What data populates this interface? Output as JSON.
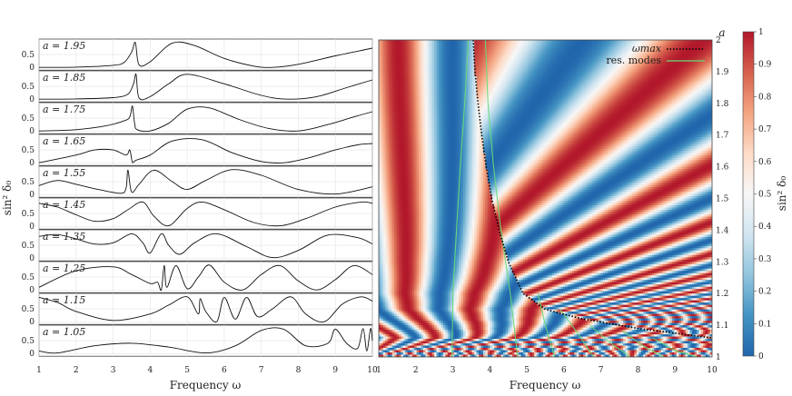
{
  "chart_data": [
    {
      "type": "line",
      "panel": "left",
      "xlabel": "Frequency ω",
      "ylabel": "sin² δ₀",
      "xlim": [
        1,
        10
      ],
      "ylim": [
        0,
        1
      ],
      "xticks": [
        1,
        2,
        3,
        4,
        5,
        6,
        7,
        8,
        9,
        10
      ],
      "yticks": [
        0,
        0.5
      ],
      "grid": true,
      "series": [
        {
          "name": "a = 1.95",
          "x": [
            1.0,
            2.0,
            3.0,
            3.3,
            3.5,
            3.6,
            3.7,
            4.0,
            4.6,
            5.2,
            6.0,
            6.8,
            7.3,
            8.0,
            9.0,
            10.0
          ],
          "values": [
            0.0,
            0.01,
            0.08,
            0.2,
            0.6,
            0.97,
            0.1,
            0.22,
            0.95,
            0.85,
            0.35,
            0.05,
            0.0,
            0.12,
            0.45,
            0.75
          ]
        },
        {
          "name": "a = 1.85",
          "x": [
            1.0,
            2.0,
            3.0,
            3.4,
            3.55,
            3.62,
            3.7,
            4.0,
            4.5,
            5.0,
            6.0,
            7.0,
            7.7,
            8.5,
            9.3,
            10.0
          ],
          "values": [
            0.0,
            0.01,
            0.06,
            0.2,
            0.6,
            0.97,
            0.05,
            0.1,
            0.6,
            0.97,
            0.6,
            0.15,
            0.0,
            0.1,
            0.45,
            0.75
          ]
        },
        {
          "name": "a = 1.75",
          "x": [
            1.0,
            2.0,
            2.8,
            3.3,
            3.45,
            3.52,
            3.58,
            3.65,
            4.0,
            4.5,
            5.0,
            5.6,
            6.4,
            7.2,
            8.0,
            8.8,
            9.5,
            10.0
          ],
          "values": [
            0.0,
            0.05,
            0.2,
            0.4,
            0.55,
            0.97,
            0.3,
            0.05,
            0.0,
            0.3,
            0.85,
            0.9,
            0.45,
            0.1,
            0.0,
            0.25,
            0.55,
            0.75
          ]
        },
        {
          "name": "a = 1.65",
          "x": [
            1.0,
            2.0,
            2.5,
            3.0,
            3.35,
            3.45,
            3.52,
            3.62,
            4.0,
            4.6,
            5.4,
            6.2,
            7.0,
            7.6,
            8.3,
            9.0,
            9.6,
            10.0
          ],
          "values": [
            0.0,
            0.3,
            0.5,
            0.5,
            0.3,
            0.5,
            0.02,
            0.1,
            0.3,
            0.85,
            0.9,
            0.4,
            0.05,
            0.0,
            0.2,
            0.5,
            0.7,
            0.75
          ]
        },
        {
          "name": "a = 1.55",
          "x": [
            1.0,
            1.5,
            2.0,
            2.6,
            3.2,
            3.35,
            3.4,
            3.5,
            3.7,
            4.1,
            4.6,
            5.0,
            5.5,
            6.2,
            7.0,
            8.0,
            9.0,
            10.0
          ],
          "values": [
            0.35,
            0.55,
            0.4,
            0.2,
            0.05,
            0.25,
            0.95,
            0.1,
            0.4,
            0.95,
            0.5,
            0.2,
            0.55,
            0.97,
            0.75,
            0.2,
            0.02,
            0.3
          ]
        },
        {
          "name": "a = 1.45",
          "x": [
            1.0,
            1.5,
            2.0,
            2.5,
            3.0,
            3.4,
            3.8,
            4.1,
            4.5,
            5.0,
            5.4,
            6.0,
            6.8,
            7.5,
            8.2,
            9.0,
            9.7,
            10.0
          ],
          "values": [
            0.9,
            0.75,
            0.45,
            0.2,
            0.3,
            0.65,
            0.95,
            0.4,
            0.02,
            0.7,
            0.95,
            0.65,
            0.15,
            0.02,
            0.3,
            0.75,
            0.95,
            0.9
          ]
        },
        {
          "name": "a = 1.35",
          "x": [
            1.0,
            1.5,
            2.0,
            2.5,
            3.0,
            3.5,
            3.8,
            4.0,
            4.3,
            4.5,
            4.8,
            5.2,
            5.8,
            6.6,
            7.3,
            8.0,
            8.8,
            9.6,
            10.0
          ],
          "values": [
            0.85,
            0.92,
            0.75,
            0.55,
            0.6,
            0.95,
            0.6,
            0.2,
            0.95,
            0.5,
            0.15,
            0.6,
            0.95,
            0.45,
            0.02,
            0.3,
            0.9,
            0.8,
            0.55
          ]
        },
        {
          "name": "a = 1.25",
          "x": [
            1.0,
            2.0,
            3.0,
            3.5,
            4.0,
            4.2,
            4.3,
            4.38,
            4.45,
            4.7,
            5.0,
            5.3,
            5.6,
            6.0,
            6.5,
            7.0,
            7.5,
            8.0,
            8.5,
            9.0,
            9.5,
            10.0
          ],
          "values": [
            0.1,
            0.75,
            0.9,
            0.6,
            0.25,
            0.3,
            0.0,
            0.95,
            0.1,
            0.95,
            0.05,
            0.5,
            0.97,
            0.3,
            0.0,
            0.6,
            0.95,
            0.35,
            0.0,
            0.4,
            0.95,
            0.6
          ]
        },
        {
          "name": "a = 1.15",
          "x": [
            1.0,
            1.5,
            2.0,
            3.0,
            4.0,
            4.5,
            5.0,
            5.3,
            5.35,
            5.5,
            5.8,
            6.0,
            6.3,
            6.6,
            6.9,
            7.3,
            7.8,
            8.2,
            8.7,
            9.2,
            9.7,
            10.0
          ],
          "values": [
            0.95,
            0.75,
            0.4,
            0.05,
            0.3,
            0.65,
            0.97,
            0.3,
            0.9,
            0.4,
            0.0,
            0.95,
            0.1,
            0.95,
            0.2,
            0.5,
            0.97,
            0.3,
            0.0,
            0.7,
            0.97,
            0.8
          ]
        },
        {
          "name": "a = 1.05",
          "x": [
            1.0,
            1.5,
            2.5,
            3.5,
            4.5,
            5.5,
            6.3,
            7.0,
            7.6,
            8.2,
            8.8,
            9.0,
            9.3,
            9.6,
            9.75,
            9.85,
            9.95,
            10.0
          ],
          "values": [
            0.1,
            0.02,
            0.3,
            0.4,
            0.25,
            0.02,
            0.3,
            0.9,
            0.95,
            0.3,
            0.4,
            0.95,
            0.4,
            0.2,
            0.97,
            0.1,
            0.97,
            0.5
          ]
        }
      ]
    },
    {
      "type": "heatmap",
      "panel": "right",
      "xlabel": "Frequency ω",
      "ylabel": "a",
      "colorbar_label": "sin² δ₀",
      "xlim": [
        1,
        10
      ],
      "ylim": [
        1,
        2
      ],
      "xticks": [
        1,
        2,
        3,
        4,
        5,
        6,
        7,
        8,
        9,
        10
      ],
      "yticks": [
        1,
        1.1,
        1.2,
        1.3,
        1.4,
        1.5,
        1.6,
        1.7,
        1.8,
        1.9,
        2
      ],
      "colorbar_ticks": [
        0,
        0.1,
        0.2,
        0.3,
        0.4,
        0.5,
        0.6,
        0.7,
        0.8,
        0.9,
        1
      ],
      "colormap": [
        "#2166ac",
        "#4393c3",
        "#92c5de",
        "#d1e5f0",
        "#f7f7f7",
        "#fddbc7",
        "#f4a582",
        "#d6604d",
        "#b2182b"
      ],
      "legend_position": "top-right",
      "series": [
        {
          "name": "ωmax",
          "style": "dotted",
          "color": "#000000",
          "x": [
            3.55,
            3.6,
            3.68,
            3.78,
            3.9,
            4.05,
            4.25,
            4.5,
            4.9,
            5.5,
            6.5,
            8.0,
            10.0
          ],
          "values": [
            2.0,
            1.9,
            1.8,
            1.7,
            1.6,
            1.5,
            1.4,
            1.3,
            1.2,
            1.15,
            1.12,
            1.09,
            1.06
          ]
        },
        {
          "name": "res. modes",
          "style": "solid",
          "color": "#66dd77",
          "curves": [
            {
              "x": [
                3.42,
                3.32,
                3.2,
                3.1,
                3.0,
                2.98
              ],
              "values": [
                2.0,
                1.8,
                1.6,
                1.4,
                1.2,
                1.0
              ]
            },
            {
              "x": [
                3.88,
                3.95,
                4.1,
                4.3,
                4.55,
                4.75
              ],
              "values": [
                2.0,
                1.8,
                1.6,
                1.4,
                1.2,
                1.0
              ]
            },
            {
              "x": [
                5.3,
                5.5,
                5.75
              ],
              "values": [
                1.2,
                1.1,
                1.0
              ]
            },
            {
              "x": [
                5.9,
                6.4,
                6.8
              ],
              "values": [
                1.15,
                1.07,
                1.0
              ]
            },
            {
              "x": [
                6.7,
                7.3,
                7.8
              ],
              "values": [
                1.1,
                1.04,
                1.0
              ]
            },
            {
              "x": [
                7.6,
                8.2,
                8.7
              ],
              "values": [
                1.08,
                1.03,
                1.0
              ]
            },
            {
              "x": [
                8.4,
                9.0,
                9.6
              ],
              "values": [
                1.06,
                1.02,
                1.0
              ]
            }
          ]
        }
      ]
    }
  ]
}
